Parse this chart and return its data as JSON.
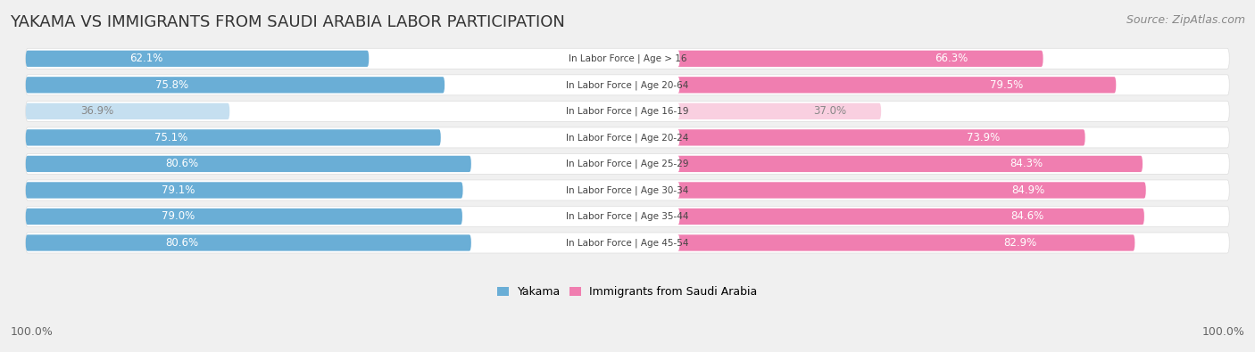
{
  "title": "YAKAMA VS IMMIGRANTS FROM SAUDI ARABIA LABOR PARTICIPATION",
  "source": "Source: ZipAtlas.com",
  "categories": [
    "In Labor Force | Age > 16",
    "In Labor Force | Age 20-64",
    "In Labor Force | Age 16-19",
    "In Labor Force | Age 20-24",
    "In Labor Force | Age 25-29",
    "In Labor Force | Age 30-34",
    "In Labor Force | Age 35-44",
    "In Labor Force | Age 45-54"
  ],
  "yakama_values": [
    62.1,
    75.8,
    36.9,
    75.1,
    80.6,
    79.1,
    79.0,
    80.6
  ],
  "immigrant_values": [
    66.3,
    79.5,
    37.0,
    73.9,
    84.3,
    84.9,
    84.6,
    82.9
  ],
  "yakama_color": "#6aaed6",
  "immigrant_color": "#f07eb0",
  "yakama_color_light": "#c5dff0",
  "immigrant_color_light": "#f9cfe0",
  "row_bg_color": "#f5f5f5",
  "row_border_color": "#dddddd",
  "background_color": "#f0f0f0",
  "legend_yakama": "Yakama",
  "legend_immigrant": "Immigrants from Saudi Arabia",
  "x_left_label": "100.0%",
  "x_right_label": "100.0%",
  "title_fontsize": 13,
  "source_fontsize": 9,
  "bar_label_fontsize": 8.5,
  "category_fontsize": 7.5,
  "legend_fontsize": 9
}
